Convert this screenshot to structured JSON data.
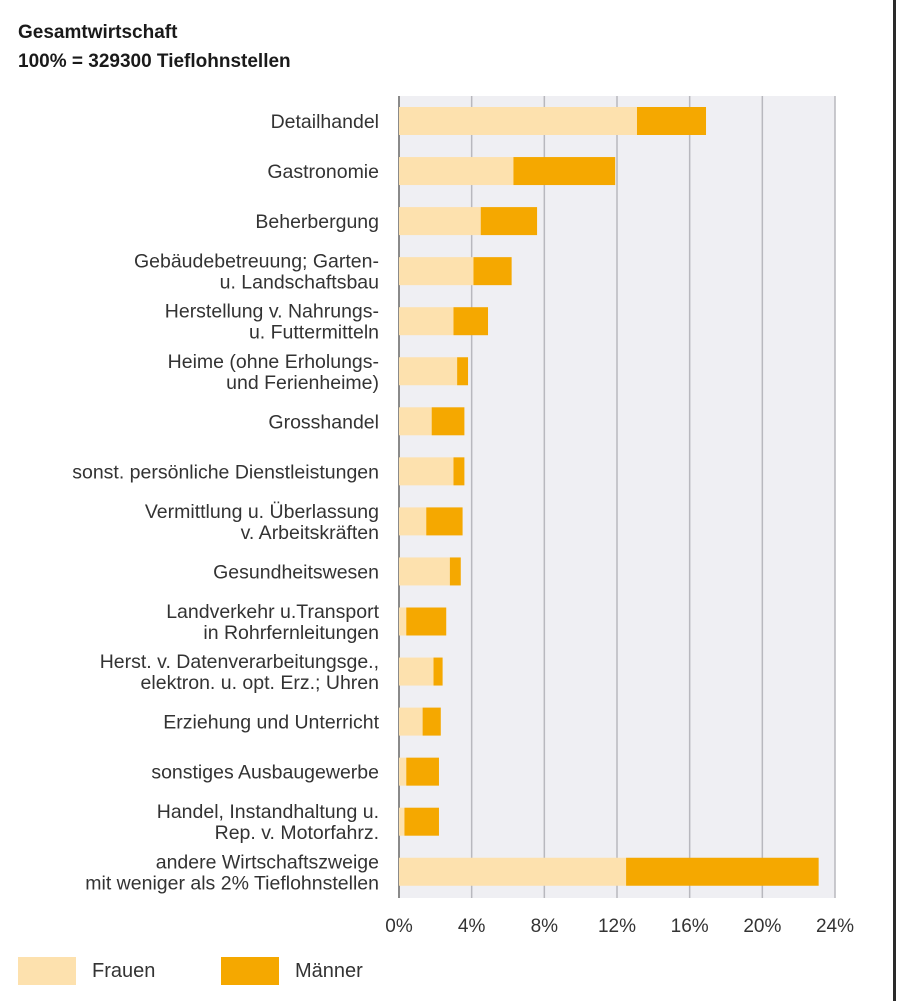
{
  "heading": {
    "line1": "Gesamtwirtschaft",
    "line2": "100% = 329300 Tieflohnstellen"
  },
  "colors": {
    "frauen": "#FDE1AE",
    "maenner": "#F5A800",
    "plot_background": "#EFEFF3",
    "gridline": "#B8B8BE",
    "axis": "#8A8A8A"
  },
  "legend": {
    "frauen": "Frauen",
    "maenner": "Männer"
  },
  "chart_data": {
    "type": "bar",
    "orientation": "horizontal",
    "stacked": true,
    "title": "Gesamtwirtschaft",
    "subtitle": "100% = 329300 Tieflohnstellen",
    "xlim": [
      0,
      24
    ],
    "x_unit": "%",
    "x_ticks": [
      "0%",
      "4%",
      "8%",
      "12%",
      "16%",
      "20%",
      "24%"
    ],
    "x_tick_values": [
      0,
      4,
      8,
      12,
      16,
      20,
      24
    ],
    "grid": true,
    "legend_position": "bottom-left",
    "categories": [
      [
        "Detailhandel"
      ],
      [
        "Gastronomie"
      ],
      [
        "Beherbergung"
      ],
      [
        "Gebäudebetreuung; Garten-",
        "u. Landschaftsbau"
      ],
      [
        "Herstellung v. Nahrungs-",
        "u. Futtermitteln"
      ],
      [
        "Heime (ohne Erholungs-",
        "und Ferienheime)"
      ],
      [
        "Grosshandel"
      ],
      [
        "sonst. persönliche Dienstleistungen"
      ],
      [
        "Vermittlung u. Überlassung",
        "v. Arbeitskräften"
      ],
      [
        "Gesundheitswesen"
      ],
      [
        "Landverkehr u.Transport",
        "in Rohrfernleitungen"
      ],
      [
        "Herst. v. Datenverarbeitungsge.,",
        "elektron. u. opt. Erz.; Uhren"
      ],
      [
        "Erziehung und Unterricht"
      ],
      [
        "sonstiges Ausbaugewerbe"
      ],
      [
        "Handel, Instandhaltung u.",
        "Rep. v. Motorfahrz."
      ],
      [
        "andere Wirtschaftszweige",
        "mit weniger als 2% Tieflohnstellen"
      ]
    ],
    "series": [
      {
        "name": "Frauen",
        "values": [
          13.1,
          6.3,
          4.5,
          4.1,
          3.0,
          3.2,
          1.8,
          3.0,
          1.5,
          2.8,
          0.4,
          1.9,
          1.3,
          0.4,
          0.3,
          12.5
        ]
      },
      {
        "name": "Männer",
        "values": [
          3.8,
          5.6,
          3.1,
          2.1,
          1.9,
          0.6,
          1.8,
          0.6,
          2.0,
          0.6,
          2.2,
          0.5,
          1.0,
          1.8,
          1.9,
          10.6
        ]
      }
    ]
  }
}
